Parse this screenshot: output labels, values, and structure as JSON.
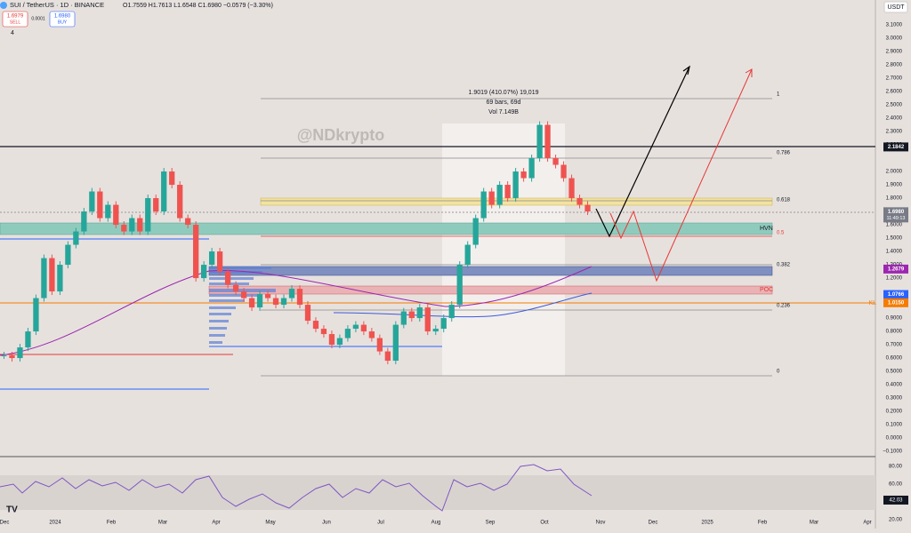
{
  "header": {
    "symbol": "SUI / TetherUS · 1D · BINANCE",
    "ohlc": "O1.7559 H1.7613 L1.6548 C1.6980 −0.0579 (−3.30%)",
    "sell_price": "1.6979",
    "sell_label": "SELL",
    "spread": "0.0001",
    "buy_price": "1.6980",
    "buy_label": "BUY",
    "indicator_count": "4",
    "currency": "USDT"
  },
  "chart_data": {
    "type": "candlestick",
    "watermark": "@NDkrypto",
    "closes": [
      0.62,
      0.6,
      0.68,
      0.8,
      1.05,
      1.35,
      1.1,
      1.3,
      1.45,
      1.55,
      1.7,
      1.85,
      1.65,
      1.75,
      1.6,
      1.55,
      1.65,
      1.55,
      1.8,
      1.7,
      2.0,
      1.9,
      1.65,
      1.6,
      1.2,
      1.3,
      1.4,
      1.25,
      1.15,
      1.1,
      1.05,
      0.98,
      1.08,
      1.05,
      1.0,
      1.05,
      1.12,
      1.0,
      0.88,
      0.82,
      0.78,
      0.7,
      0.75,
      0.82,
      0.85,
      0.8,
      0.75,
      0.65,
      0.58,
      0.85,
      0.95,
      0.9,
      0.98,
      0.8,
      0.82,
      0.9,
      1.0,
      1.3,
      1.45,
      1.65,
      1.85,
      1.75,
      1.9,
      1.8,
      2.0,
      1.95,
      2.1,
      2.35,
      2.1,
      2.05,
      1.95,
      1.8,
      1.75,
      1.7
    ],
    "up_color": "#26a69a",
    "down_color": "#ef5350",
    "ylim": [
      -0.126,
      3.22
    ],
    "yticks": [
      {
        "value": 3.1,
        "label": "3.1000"
      },
      {
        "value": 3.0,
        "label": "3.0000"
      },
      {
        "value": 2.9,
        "label": "2.9000"
      },
      {
        "value": 2.8,
        "label": "2.8000"
      },
      {
        "value": 2.7,
        "label": "2.7000"
      },
      {
        "value": 2.6,
        "label": "2.6000"
      },
      {
        "value": 2.5,
        "label": "2.5000"
      },
      {
        "value": 2.4,
        "label": "2.4000"
      },
      {
        "value": 2.3,
        "label": "2.3000"
      },
      {
        "value": 2.2,
        "label": "2.2000"
      },
      {
        "value": 2.0,
        "label": "2.0000"
      },
      {
        "value": 1.9,
        "label": "1.9000"
      },
      {
        "value": 1.8,
        "label": "1.8000"
      },
      {
        "value": 1.7,
        "label": "1.7000"
      },
      {
        "value": 1.6,
        "label": "1.6000"
      },
      {
        "value": 1.5,
        "label": "1.5000"
      },
      {
        "value": 1.4,
        "label": "1.4000"
      },
      {
        "value": 1.3,
        "label": "1.3000"
      },
      {
        "value": 1.2,
        "label": "1.2000"
      },
      {
        "value": 0.9,
        "label": "0.9000"
      },
      {
        "value": 0.8,
        "label": "0.8000"
      },
      {
        "value": 0.7,
        "label": "0.7000"
      },
      {
        "value": 0.6,
        "label": "0.6000"
      },
      {
        "value": 0.5,
        "label": "0.5000"
      },
      {
        "value": 0.4,
        "label": "0.4000"
      },
      {
        "value": 0.3,
        "label": "0.3000"
      },
      {
        "value": 0.2,
        "label": "0.2000"
      },
      {
        "value": 0.1,
        "label": "0.1000"
      },
      {
        "value": 0,
        "label": "0.0000"
      },
      {
        "value": -0.1,
        "label": "−0.1000"
      }
    ],
    "price_markers": [
      {
        "value": 2.1842,
        "color": "#131722"
      },
      {
        "value": {
          "value": 1.698,
          "label": "1.6980"
        },
        "color": "#787b86"
      },
      {
        "value": 1.2679,
        "color": "#9c27b0"
      },
      {
        "value": 1.0766,
        "color": "#2962ff"
      },
      {
        "value": {
          "value": 1.015,
          "label": "1.0150"
        },
        "color": "#f57c00"
      }
    ],
    "countdown": "11:49:13",
    "x_labels": [
      "Dec",
      "2024",
      "Feb",
      "Mar",
      "Apr",
      "May",
      "Jun",
      "Jul",
      "Aug",
      "Sep",
      "Oct",
      "Nov",
      "Dec",
      "2025",
      "Feb",
      "Mar",
      "Apr"
    ],
    "fib_labels": [
      "1",
      "0.786",
      "0.618",
      "0.5",
      "0.382",
      "0.236",
      "0"
    ],
    "measure": [
      "1.9019 (410.07%) 19,019",
      "69 bars, 69d",
      "Vol 7.149B"
    ],
    "zones": {
      "hvn": "HVN",
      "poc": "POC",
      "kl": "KL"
    },
    "rsi": {
      "ticks": [
        {
          "value": 80,
          "label": "80.00"
        },
        {
          "value": 60,
          "label": "60.00"
        },
        {
          "value": 20,
          "label": "20.00"
        }
      ],
      "last": {
        "value": 42.03,
        "label": "42.03"
      }
    }
  }
}
